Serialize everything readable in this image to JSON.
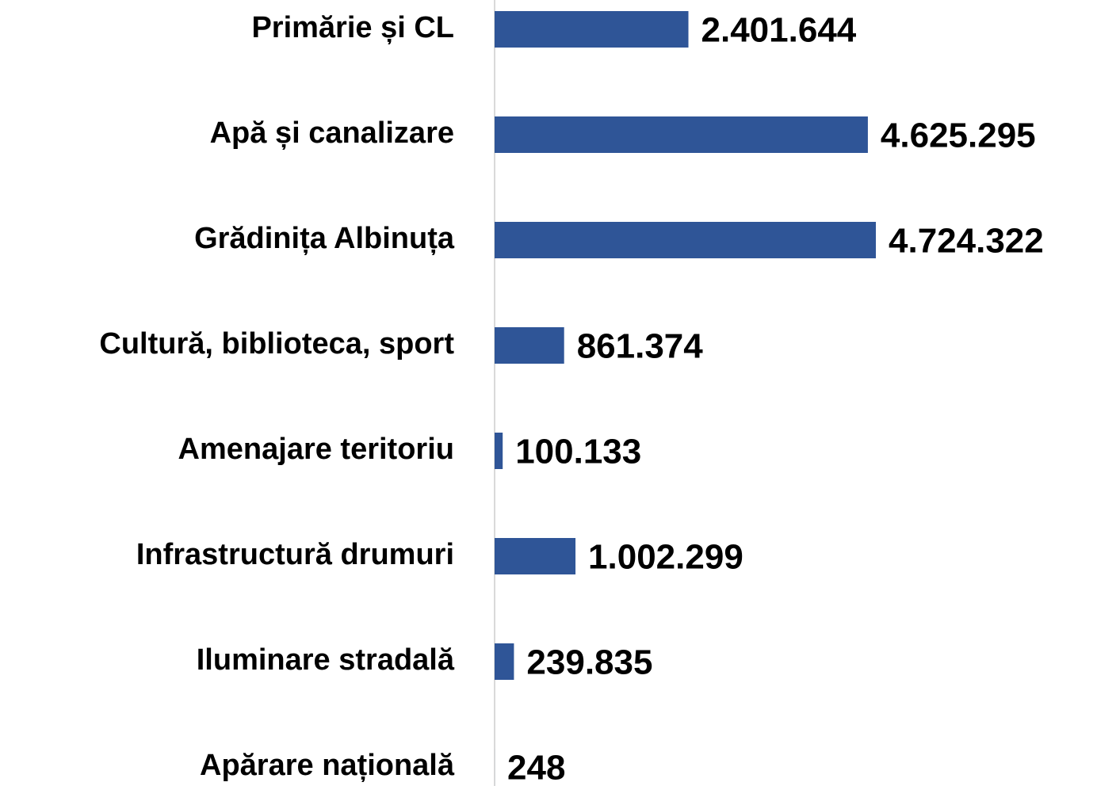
{
  "chart_data": {
    "type": "bar",
    "orientation": "horizontal",
    "categories": [
      "Primărie și CL",
      "Apă și canalizare",
      "Grădinița Albinuța",
      "Cultură, biblioteca, sport",
      "Amenajare teritoriu",
      "Infrastructură drumuri",
      "Iluminare stradală",
      "Apărare națională"
    ],
    "values": [
      2401644,
      4625295,
      4724322,
      861374,
      100133,
      1002299,
      239835,
      248
    ],
    "value_labels": [
      "2.401.644",
      "4.625.295",
      "4.724.322",
      "861.374",
      "100.133",
      "1.002.299",
      "239.835",
      "248"
    ],
    "color": "#2f5597"
  }
}
